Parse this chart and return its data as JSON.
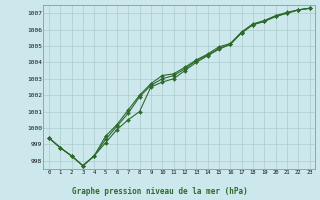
{
  "title": "Graphe pression niveau de la mer (hPa)",
  "background_color": "#cce8ec",
  "grid_color": "#aacccc",
  "line_color": "#2d6a2d",
  "xlim": [
    -0.5,
    23.5
  ],
  "ylim": [
    997.5,
    1007.5
  ],
  "yticks": [
    998,
    999,
    1000,
    1001,
    1002,
    1003,
    1004,
    1005,
    1006,
    1007
  ],
  "x_ticks": [
    0,
    1,
    2,
    3,
    4,
    5,
    6,
    7,
    8,
    9,
    10,
    11,
    12,
    13,
    14,
    15,
    16,
    17,
    18,
    19,
    20,
    21,
    22,
    23
  ],
  "line1": [
    999.4,
    998.8,
    998.3,
    997.7,
    998.3,
    999.1,
    999.9,
    1000.5,
    1001.0,
    1002.5,
    1002.8,
    1003.0,
    1003.5,
    1004.0,
    1004.4,
    1004.8,
    1005.1,
    1005.8,
    1006.3,
    1006.5,
    1006.8,
    1007.0,
    1007.2,
    1007.3
  ],
  "line2": [
    999.4,
    998.8,
    998.3,
    997.7,
    998.3,
    999.3,
    1000.1,
    1000.9,
    1001.9,
    1002.6,
    1003.0,
    1003.2,
    1003.6,
    1004.1,
    1004.45,
    1004.85,
    1005.1,
    1005.8,
    1006.3,
    1006.5,
    1006.8,
    1007.0,
    1007.2,
    1007.3
  ],
  "line3": [
    999.4,
    998.8,
    998.3,
    997.7,
    998.3,
    999.5,
    1000.2,
    1001.1,
    1002.0,
    1002.7,
    1003.2,
    1003.3,
    1003.7,
    1004.15,
    1004.5,
    1004.95,
    1005.15,
    1005.85,
    1006.35,
    1006.55,
    1006.85,
    1007.05,
    1007.2,
    1007.3
  ]
}
